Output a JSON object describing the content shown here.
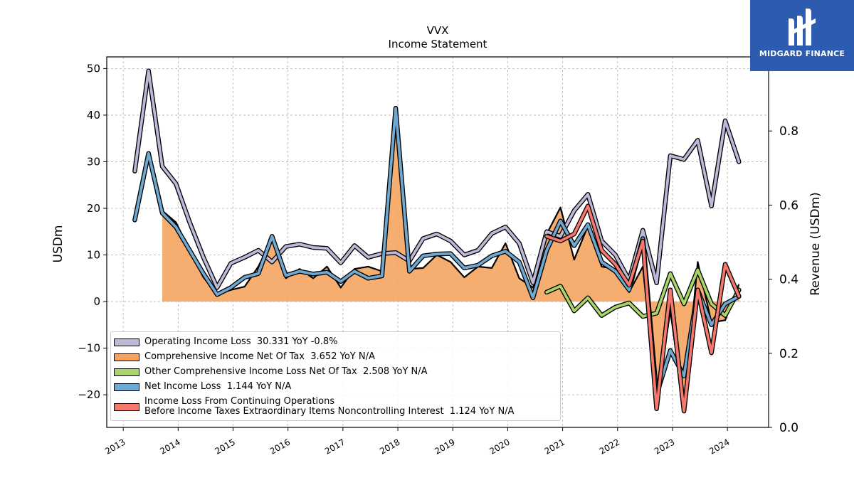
{
  "chart_data": {
    "type": "line",
    "title": "VVX",
    "subtitle": "Income Statement",
    "ylabel": "USDm",
    "y2label": "Revenue (USDm)",
    "ylim": [
      -27,
      52.5
    ],
    "y2lim": [
      0,
      1.0
    ],
    "yticks": [
      "50",
      "40",
      "30",
      "20",
      "10",
      "0",
      "−10",
      "−20"
    ],
    "y2ticks": [
      "0.8",
      "0.6",
      "0.4",
      "0.2",
      "0.0"
    ],
    "xticks": [
      "2013",
      "2014",
      "2015",
      "2016",
      "2017",
      "2018",
      "2019",
      "2020",
      "2021",
      "2022",
      "2023",
      "2024"
    ],
    "grid": true,
    "legend_position": "lower-left",
    "series": [
      {
        "name": "Operating Income Loss",
        "legend": "Operating Income Loss  30.331 YoY -0.8%",
        "color": "#bcb8d8",
        "style": "line",
        "x": [
          2013.21,
          2013.46,
          2013.71,
          2013.96,
          2014.21,
          2014.46,
          2014.71,
          2014.96,
          2015.21,
          2015.46,
          2015.71,
          2015.96,
          2016.21,
          2016.46,
          2016.71,
          2016.96,
          2017.21,
          2017.46,
          2017.71,
          2017.96,
          2018.21,
          2018.46,
          2018.71,
          2018.96,
          2019.21,
          2019.46,
          2019.71,
          2019.96,
          2020.21,
          2020.46,
          2020.71,
          2020.96,
          2021.21,
          2021.46,
          2021.71,
          2021.96,
          2022.21,
          2022.46,
          2022.71,
          2022.96,
          2023.21,
          2023.46,
          2023.71,
          2023.96,
          2024.21
        ],
        "values": [
          28,
          49.5,
          29,
          25.3,
          17,
          9.5,
          3,
          8.2,
          9.5,
          11,
          8.5,
          11.8,
          12.3,
          11.6,
          11.4,
          8.3,
          12,
          9.5,
          10.3,
          10.5,
          8.7,
          13.5,
          14.5,
          13,
          10,
          11,
          14.6,
          16,
          12.5,
          4,
          15,
          14,
          19.5,
          23,
          13,
          10,
          4.6,
          15.3,
          4,
          31.3,
          30.5,
          34.6,
          20.5,
          38.8,
          30
        ]
      },
      {
        "name": "Comprehensive Income Net Of Tax",
        "legend": "Comprehensive Income Net Of Tax  3.652 YoY N/A",
        "color": "#f4a460",
        "style": "area",
        "x": [
          2013.71,
          2013.96,
          2014.21,
          2014.46,
          2014.71,
          2014.96,
          2015.21,
          2015.46,
          2015.71,
          2015.96,
          2016.21,
          2016.46,
          2016.71,
          2016.96,
          2017.21,
          2017.46,
          2017.71,
          2017.96,
          2018.21,
          2018.46,
          2018.71,
          2018.96,
          2019.21,
          2019.46,
          2019.71,
          2019.96,
          2020.21,
          2020.46,
          2020.71,
          2020.96,
          2021.21,
          2021.46,
          2021.71,
          2021.96,
          2022.21,
          2022.46,
          2022.71,
          2022.96,
          2023.21,
          2023.46,
          2023.71,
          2023.96,
          2024.21
        ],
        "values": [
          19.5,
          17,
          11,
          5.2,
          1.5,
          2.5,
          3.2,
          7.5,
          13.5,
          5,
          7,
          5,
          7.5,
          3,
          7,
          7.5,
          6.5,
          41,
          7,
          7.2,
          10,
          8.5,
          5.2,
          7.5,
          7.2,
          12.5,
          5,
          3,
          14.5,
          20.2,
          9,
          16.2,
          7.5,
          7,
          2,
          7.5,
          -22,
          -2,
          -23,
          8.5,
          -4.5,
          -4,
          3.7
        ]
      },
      {
        "name": "Other Comprehensive Income Loss Net Of Tax",
        "legend": "Other Comprehensive Income Loss Net Of Tax  2.508 YoY N/A",
        "color": "#a8d46a",
        "style": "line",
        "x": [
          2020.71,
          2020.96,
          2021.21,
          2021.46,
          2021.71,
          2021.96,
          2022.21,
          2022.46,
          2022.71,
          2022.96,
          2023.21,
          2023.46,
          2023.71,
          2023.96,
          2024.21
        ],
        "values": [
          2,
          3.3,
          -2,
          0.8,
          -3,
          -1.2,
          -0.3,
          -3.2,
          -2.5,
          6,
          -0.5,
          6.8,
          -0.5,
          -3,
          2.5
        ]
      },
      {
        "name": "Net Income Loss",
        "legend": "Net Income Loss  1.144 YoY N/A",
        "color": "#6fa8d0",
        "style": "line",
        "x": [
          2013.21,
          2013.46,
          2013.71,
          2013.96,
          2014.21,
          2014.46,
          2014.71,
          2014.96,
          2015.21,
          2015.46,
          2015.71,
          2015.96,
          2016.21,
          2016.46,
          2016.71,
          2016.96,
          2017.21,
          2017.46,
          2017.71,
          2017.96,
          2018.21,
          2018.46,
          2018.71,
          2018.96,
          2019.21,
          2019.46,
          2019.71,
          2019.96,
          2020.21,
          2020.46,
          2020.71,
          2020.96,
          2021.21,
          2021.46,
          2021.71,
          2021.96,
          2022.21,
          2022.46,
          2022.71,
          2022.96,
          2023.21,
          2023.46,
          2023.71,
          2023.96,
          2024.21
        ],
        "values": [
          17.5,
          31.8,
          19,
          16,
          11,
          6,
          1.5,
          3,
          5.2,
          6,
          14,
          5.6,
          6.5,
          5.9,
          6.3,
          4.3,
          6.5,
          5,
          5.5,
          41.5,
          6.5,
          9.8,
          10.2,
          10.3,
          7.2,
          7.8,
          9.8,
          10.8,
          8.5,
          0.8,
          11,
          17.3,
          12,
          16.5,
          8.5,
          6.5,
          2.5,
          13.5,
          -20,
          -10.5,
          -16,
          2.5,
          -5,
          -0.5,
          1.1
        ]
      },
      {
        "name": "Income Loss From Continuing Operations Before Income Taxes Extraordinary Items Noncontrolling Interest",
        "legend": "Income Loss From Continuing Operations\nBefore Income Taxes Extraordinary Items Noncontrolling Interest  1.124 YoY N/A",
        "color": "#f4786c",
        "style": "line",
        "x": [
          2020.71,
          2020.96,
          2021.21,
          2021.46,
          2021.71,
          2021.96,
          2022.21,
          2022.46,
          2022.71,
          2022.96,
          2023.21,
          2023.46,
          2023.71,
          2023.96,
          2024.21
        ],
        "values": [
          14,
          13,
          14.5,
          20.5,
          11,
          8,
          3.5,
          13,
          -23,
          2.5,
          -23.5,
          2.5,
          -11,
          8,
          1.1
        ]
      }
    ]
  },
  "brand": {
    "name": "MIDGARD FINANCE",
    "color": "#2d5bb0"
  }
}
